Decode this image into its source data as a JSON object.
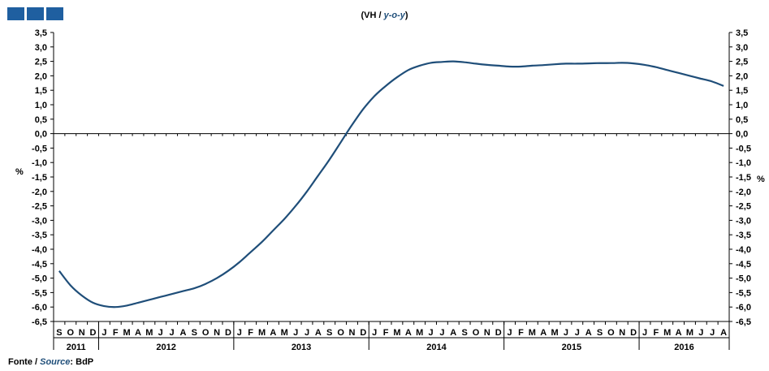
{
  "header": {
    "title_prefix": "(VH / ",
    "title_yoy": "y-o-y",
    "title_suffix": ")"
  },
  "footer": {
    "prefix": "Fonte / ",
    "source_label": "Source",
    "suffix": ": BdP"
  },
  "colors": {
    "brand": "#1f5fa0",
    "line": "#1f4e79",
    "axis": "#000000"
  },
  "chart_data": {
    "type": "line",
    "ylabel_left": "%",
    "ylabel_right": "%",
    "ylim": [
      -6.5,
      3.5
    ],
    "ytick_step": 0.5,
    "yticks": [
      "3,5",
      "3,0",
      "2,5",
      "2,0",
      "1,5",
      "1,0",
      "0,5",
      "0,0",
      "-0,5",
      "-1,0",
      "-1,5",
      "-2,0",
      "-2,5",
      "-3,0",
      "-3,5",
      "-4,0",
      "-4,5",
      "-5,0",
      "-5,5",
      "-6,0",
      "-6,5"
    ],
    "grid": false,
    "month_labels": [
      "S",
      "O",
      "N",
      "D",
      "J",
      "F",
      "M",
      "A",
      "M",
      "J",
      "J",
      "A",
      "S",
      "O",
      "N",
      "D",
      "J",
      "F",
      "M",
      "A",
      "M",
      "J",
      "J",
      "A",
      "S",
      "O",
      "N",
      "D",
      "J",
      "F",
      "M",
      "A",
      "M",
      "J",
      "J",
      "A",
      "S",
      "O",
      "N",
      "D",
      "J",
      "F",
      "M",
      "A",
      "M",
      "J",
      "J",
      "A",
      "S",
      "O",
      "N",
      "D",
      "J",
      "F",
      "M",
      "A",
      "M",
      "J",
      "J",
      "A"
    ],
    "years": [
      {
        "label": "2011",
        "months": 4
      },
      {
        "label": "2012",
        "months": 12
      },
      {
        "label": "2013",
        "months": 12
      },
      {
        "label": "2014",
        "months": 12
      },
      {
        "label": "2015",
        "months": 12
      },
      {
        "label": "2016",
        "months": 8
      }
    ],
    "series": [
      {
        "values": [
          -4.75,
          -5.25,
          -5.6,
          -5.85,
          -5.97,
          -6.0,
          -5.95,
          -5.85,
          -5.75,
          -5.65,
          -5.55,
          -5.45,
          -5.35,
          -5.2,
          -5.0,
          -4.75,
          -4.45,
          -4.1,
          -3.75,
          -3.35,
          -2.95,
          -2.5,
          -2.0,
          -1.45,
          -0.9,
          -0.3,
          0.3,
          0.85,
          1.3,
          1.65,
          1.95,
          2.2,
          2.35,
          2.45,
          2.48,
          2.5,
          2.47,
          2.42,
          2.38,
          2.35,
          2.32,
          2.32,
          2.35,
          2.37,
          2.4,
          2.42,
          2.42,
          2.43,
          2.44,
          2.44,
          2.45,
          2.43,
          2.38,
          2.3,
          2.2,
          2.1,
          2.0,
          1.9,
          1.8,
          1.65
        ]
      }
    ]
  }
}
